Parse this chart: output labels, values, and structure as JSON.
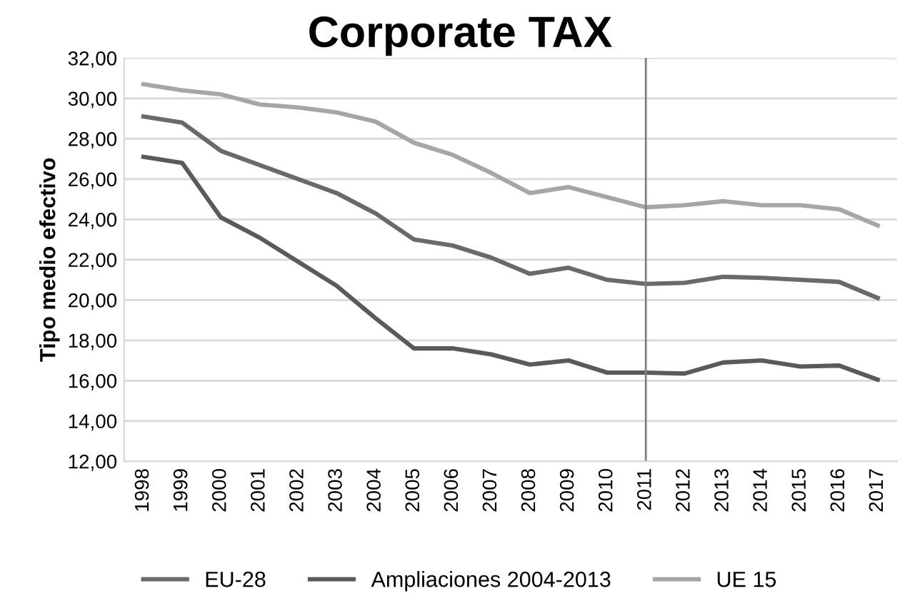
{
  "chart_data": {
    "type": "line",
    "title": "Corporate TAX",
    "ylabel": "Tipo medio efectivo",
    "categories": [
      "1998",
      "1999",
      "2000",
      "2001",
      "2002",
      "2003",
      "2004",
      "2005",
      "2006",
      "2007",
      "2008",
      "2009",
      "2010",
      "2011",
      "2012",
      "2013",
      "2014",
      "2015",
      "2016",
      "2017"
    ],
    "series": [
      {
        "name": "EU-28",
        "color": "#6a6a6a",
        "values": [
          29.1,
          28.8,
          27.4,
          26.7,
          26.0,
          25.3,
          24.3,
          23.0,
          22.7,
          22.1,
          21.3,
          21.6,
          21.0,
          20.8,
          20.85,
          21.15,
          21.1,
          21.0,
          20.9,
          20.1
        ]
      },
      {
        "name": "Ampliaciones 2004-2013",
        "color": "#5a5a5a",
        "values": [
          27.1,
          26.8,
          24.1,
          23.1,
          21.9,
          20.7,
          19.1,
          17.6,
          17.6,
          17.3,
          16.8,
          17.0,
          16.4,
          16.4,
          16.35,
          16.9,
          17.0,
          16.7,
          16.75,
          16.05
        ]
      },
      {
        "name": "UE 15",
        "color": "#a6a6a6",
        "values": [
          30.7,
          30.4,
          30.2,
          29.7,
          29.55,
          29.3,
          28.85,
          27.8,
          27.2,
          26.3,
          25.3,
          25.6,
          25.1,
          24.6,
          24.7,
          24.9,
          24.7,
          24.7,
          24.5,
          23.7
        ]
      }
    ],
    "ylim": [
      12,
      32
    ],
    "yticks": [
      {
        "value": 12,
        "label": "12,00"
      },
      {
        "value": 14,
        "label": "14,00"
      },
      {
        "value": 16,
        "label": "16,00"
      },
      {
        "value": 18,
        "label": "18,00"
      },
      {
        "value": 20,
        "label": "20,00"
      },
      {
        "value": 22,
        "label": "22,00"
      },
      {
        "value": 24,
        "label": "24,00"
      },
      {
        "value": 26,
        "label": "26,00"
      },
      {
        "value": 28,
        "label": "28,00"
      },
      {
        "value": 30,
        "label": "30,00"
      },
      {
        "value": 32,
        "label": "32,00"
      }
    ],
    "ref_lines": [
      {
        "axis": "x",
        "value": "2011",
        "color": "#7f7f7f"
      }
    ],
    "grid": "y",
    "legend": "bottom",
    "marker": "none",
    "line_style": "solid"
  }
}
